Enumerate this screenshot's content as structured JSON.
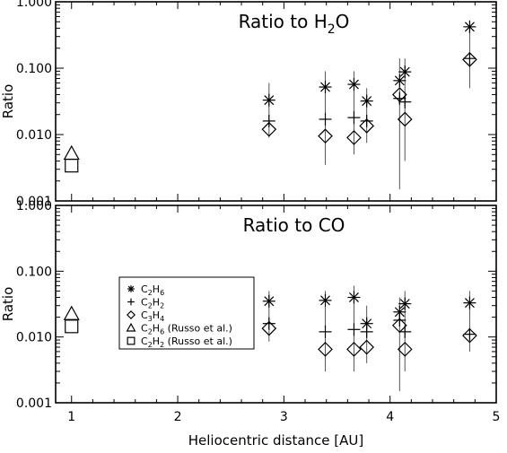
{
  "chart_data": {
    "type": "scatter",
    "xlabel": "Heliocentric distance [AU]",
    "xlim": [
      0.85,
      5.0
    ],
    "x_ticks": [
      1,
      2,
      3,
      4,
      5
    ],
    "ylim": [
      0.001,
      1.0
    ],
    "yscale": "log",
    "y_ticks": [
      "0.001",
      "0.010",
      "0.100",
      "1.000"
    ],
    "ylabel": "Ratio",
    "panels": [
      {
        "title": "Ratio to H2O",
        "title_parts": {
          "pre": "Ratio to H",
          "sub": "2",
          "post": "O"
        },
        "series": [
          {
            "key": "c2h6",
            "name": "C2H6",
            "marker": "asterisk",
            "points": [
              [
                2.86,
                0.033
              ],
              [
                3.39,
                0.052
              ],
              [
                3.66,
                0.057
              ],
              [
                3.78,
                0.032
              ],
              [
                4.09,
                0.065
              ],
              [
                4.14,
                0.088
              ],
              [
                4.75,
                0.42
              ]
            ]
          },
          {
            "key": "c2h2",
            "name": "C2H2",
            "marker": "plus",
            "points": [
              [
                2.86,
                0.016
              ],
              [
                3.39,
                0.017
              ],
              [
                3.66,
                0.018
              ],
              [
                3.78,
                0.016
              ],
              [
                4.09,
                0.035
              ],
              [
                4.14,
                0.031
              ],
              [
                4.75,
                0.14
              ]
            ]
          },
          {
            "key": "c3h4",
            "name": "C3H4",
            "marker": "diamond",
            "points": [
              [
                2.86,
                0.012
              ],
              [
                3.39,
                0.0095
              ],
              [
                3.66,
                0.009
              ],
              [
                3.78,
                0.0135
              ],
              [
                4.09,
                0.04
              ],
              [
                4.14,
                0.017
              ],
              [
                4.75,
                0.135
              ]
            ]
          },
          {
            "key": "russo_c2h6",
            "name": "C2H6 (Russo et al.)",
            "marker": "triangle",
            "points": [
              [
                1.0,
                0.0052
              ]
            ]
          },
          {
            "key": "russo_c2h2",
            "name": "C2H2 (Russo et al.)",
            "marker": "square",
            "points": [
              [
                1.0,
                0.0034
              ]
            ]
          }
        ],
        "errors": [
          [
            2.86,
            0.009,
            0.06
          ],
          [
            3.39,
            0.0035,
            0.09
          ],
          [
            3.66,
            0.005,
            0.09
          ],
          [
            3.78,
            0.0075,
            0.05
          ],
          [
            4.09,
            0.0015,
            0.14
          ],
          [
            4.14,
            0.004,
            0.14
          ],
          [
            4.75,
            0.05,
            0.45
          ]
        ]
      },
      {
        "title": "Ratio to CO",
        "title_parts": {
          "pre": "Ratio to CO",
          "sub": "",
          "post": ""
        },
        "series": [
          {
            "key": "c2h6",
            "name": "C2H6",
            "marker": "asterisk",
            "points": [
              [
                2.86,
                0.035
              ],
              [
                3.39,
                0.036
              ],
              [
                3.66,
                0.04
              ],
              [
                3.78,
                0.016
              ],
              [
                4.09,
                0.024
              ],
              [
                4.14,
                0.032
              ],
              [
                4.75,
                0.033
              ]
            ]
          },
          {
            "key": "c2h2",
            "name": "C2H2",
            "marker": "plus",
            "points": [
              [
                2.86,
                0.016
              ],
              [
                3.39,
                0.012
              ],
              [
                3.66,
                0.013
              ],
              [
                3.78,
                0.012
              ],
              [
                4.09,
                0.018
              ],
              [
                4.14,
                0.012
              ],
              [
                4.75,
                0.011
              ]
            ]
          },
          {
            "key": "c3h4",
            "name": "C3H4",
            "marker": "diamond",
            "points": [
              [
                2.86,
                0.0135
              ],
              [
                3.39,
                0.0065
              ],
              [
                3.66,
                0.0065
              ],
              [
                3.78,
                0.007
              ],
              [
                4.09,
                0.015
              ],
              [
                4.14,
                0.0065
              ],
              [
                4.75,
                0.0105
              ]
            ]
          },
          {
            "key": "russo_c2h6",
            "name": "C2H6 (Russo et al.)",
            "marker": "triangle",
            "points": [
              [
                1.0,
                0.0225
              ]
            ]
          },
          {
            "key": "russo_c2h2",
            "name": "C2H2 (Russo et al.)",
            "marker": "square",
            "points": [
              [
                1.0,
                0.0145
              ]
            ]
          }
        ],
        "errors": [
          [
            2.86,
            0.0085,
            0.05
          ],
          [
            3.39,
            0.003,
            0.05
          ],
          [
            3.66,
            0.003,
            0.06
          ],
          [
            3.78,
            0.004,
            0.03
          ],
          [
            4.09,
            0.0015,
            0.04
          ],
          [
            4.14,
            0.003,
            0.05
          ],
          [
            4.75,
            0.006,
            0.05
          ]
        ]
      }
    ],
    "legend": {
      "placement": "bottom panel, left",
      "entries": [
        {
          "marker": "asterisk",
          "base": "C",
          "sub1": "2",
          "mid": "H",
          "sub2": "6",
          "suffix": ""
        },
        {
          "marker": "plus",
          "base": "C",
          "sub1": "2",
          "mid": "H",
          "sub2": "2",
          "suffix": ""
        },
        {
          "marker": "diamond",
          "base": "C",
          "sub1": "3",
          "mid": "H",
          "sub2": "4",
          "suffix": ""
        },
        {
          "marker": "triangle",
          "base": "C",
          "sub1": "2",
          "mid": "H",
          "sub2": "6",
          "suffix": " (Russo et al.)"
        },
        {
          "marker": "square",
          "base": "C",
          "sub1": "2",
          "mid": "H",
          "sub2": "2",
          "suffix": " (Russo et al.)"
        }
      ]
    }
  }
}
